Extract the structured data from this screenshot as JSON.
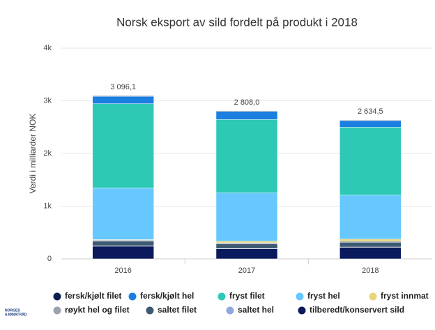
{
  "chart_data": {
    "type": "stacked_bar",
    "title": "Norsk eksport av sild fordelt på produkt i 2018",
    "y_label": "Verdi i milliarder NOK",
    "logo": [
      "NORGES",
      "SJØMATRÅD"
    ],
    "categories": [
      "2016",
      "2017",
      "2018"
    ],
    "series": [
      {
        "name": "fersk/kjølt filet",
        "color": "#0d1f4f",
        "values": [
          11.1,
          10,
          10
        ]
      },
      {
        "name": "fersk/kjølt hel",
        "color": "#1a7fe0",
        "values": [
          140,
          153,
          124.5
        ]
      },
      {
        "name": "fryst filet",
        "color": "#2ec9b5",
        "values": [
          1600,
          1390,
          1290
        ]
      },
      {
        "name": "fryst hel",
        "color": "#66c8ff",
        "values": [
          980,
          920,
          835
        ]
      },
      {
        "name": "fryst innmat",
        "color": "#e8d57a",
        "values": [
          10,
          30,
          40
        ]
      },
      {
        "name": "røykt hel og filet",
        "color": "#9aa3ad",
        "values": [
          20,
          20,
          20
        ]
      },
      {
        "name": "saltet filet",
        "color": "#3e5a73",
        "values": [
          90,
          90,
          90
        ]
      },
      {
        "name": "saltet hel",
        "color": "#8fa8e0",
        "values": [
          5,
          5,
          5
        ]
      },
      {
        "name": "tilberedt/konservert sild",
        "color": "#0a1a5c",
        "values": [
          240,
          190,
          220
        ]
      }
    ],
    "totals": [
      3096.1,
      2808.0,
      2634.5
    ],
    "total_labels": [
      "3 096,1",
      "2 808,0",
      "2 634,5"
    ],
    "ylim": [
      0,
      4000
    ],
    "yticks": [
      0,
      {
        "value": 1000,
        "label": "1k"
      },
      {
        "value": 2000,
        "label": "2k"
      },
      {
        "value": 3000,
        "label": "3k"
      },
      {
        "value": 4000,
        "label": "4k"
      }
    ],
    "grid": true
  }
}
